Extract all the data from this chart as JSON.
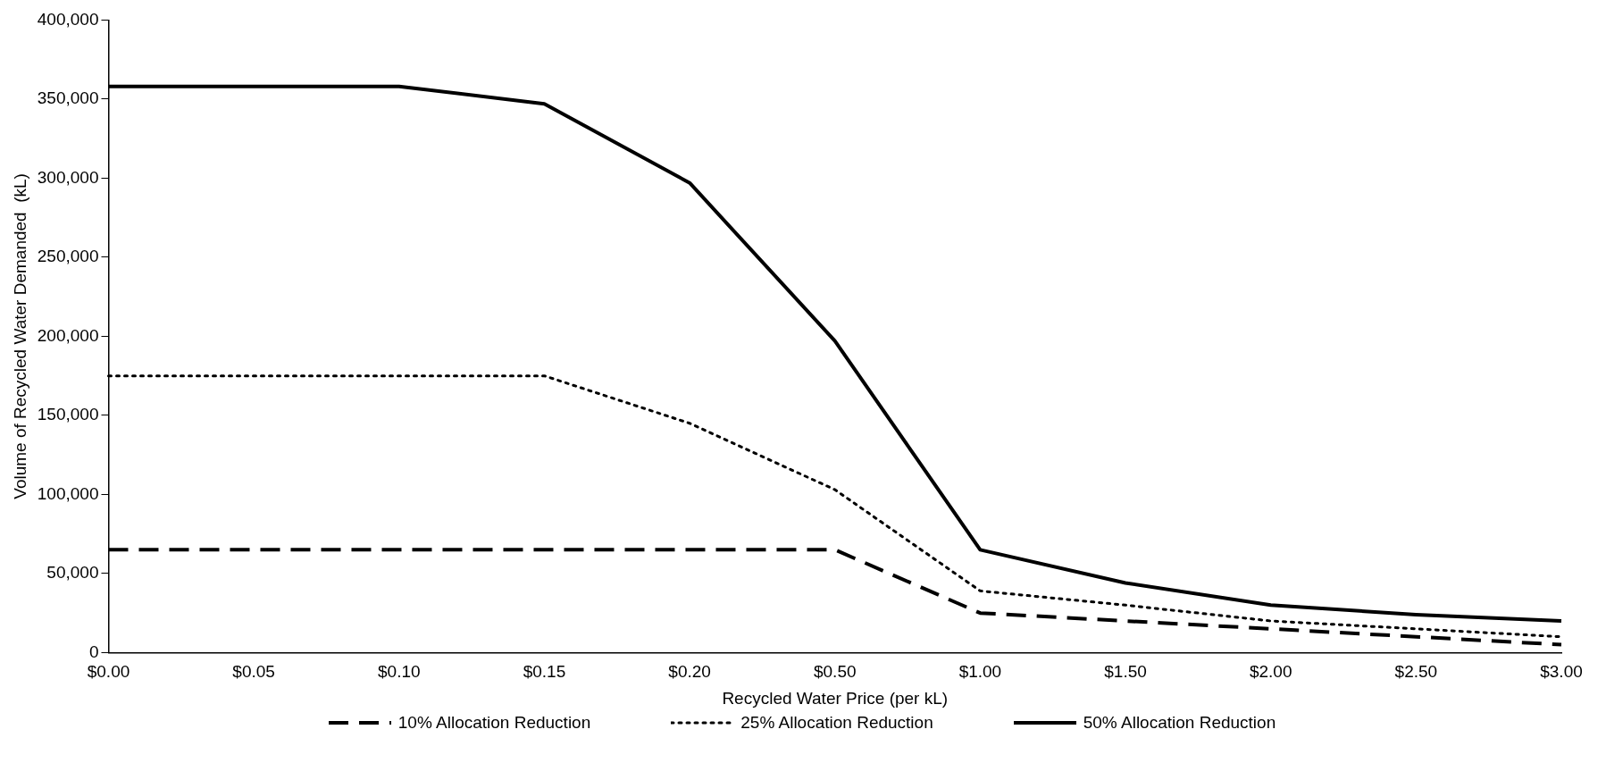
{
  "chart_data": {
    "type": "line",
    "xlabel": "Recycled Water Price (per kL)",
    "ylabel": "Volume of Recycled Water Demanded  (kL)",
    "categories": [
      "$0.00",
      "$0.05",
      "$0.10",
      "$0.15",
      "$0.20",
      "$0.50",
      "$1.00",
      "$1.50",
      "$2.00",
      "$2.50",
      "$3.00"
    ],
    "series": [
      {
        "name": "10% Allocation Reduction",
        "color": "#000000",
        "line_style": "dashed",
        "values": [
          65000,
          65000,
          65000,
          65000,
          65000,
          65000,
          25000,
          20000,
          15000,
          10000,
          5000
        ]
      },
      {
        "name": "25% Allocation Reduction",
        "color": "#000000",
        "line_style": "dotted",
        "values": [
          175000,
          175000,
          175000,
          175000,
          145000,
          103000,
          39000,
          30000,
          20000,
          15000,
          10000
        ]
      },
      {
        "name": "50% Allocation Reduction",
        "color": "#000000",
        "line_style": "solid",
        "values": [
          358000,
          358000,
          358000,
          347000,
          297000,
          197000,
          65000,
          44000,
          30000,
          24000,
          20000
        ]
      }
    ],
    "ylim": [
      0,
      400000
    ],
    "yticks": [
      0,
      {
        "value": 50000,
        "label": "50,000"
      },
      {
        "value": 100000,
        "label": "100,000"
      },
      {
        "value": 150000,
        "label": "150,000"
      },
      {
        "value": 200000,
        "label": "200,000"
      },
      {
        "value": 250000,
        "label": "250,000"
      },
      {
        "value": 300000,
        "label": "300,000"
      },
      {
        "value": 350000,
        "label": "350,000"
      },
      {
        "value": 400000,
        "label": "400,000"
      }
    ],
    "grid": false,
    "legend": "bottom",
    "marker": "none"
  }
}
